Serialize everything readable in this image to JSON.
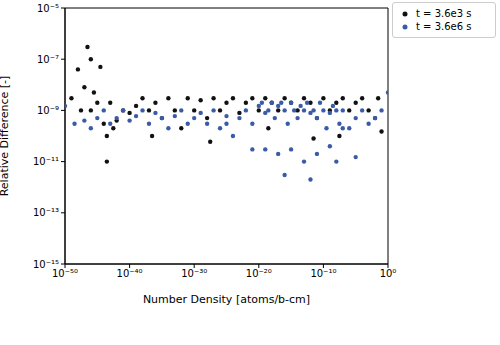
{
  "chart_data": {
    "type": "scatter",
    "xlabel": "Number Density [atoms/b-cm]",
    "ylabel": "Relative Difference [-]",
    "log": true,
    "legend": "upper right",
    "xlim": [
      1e-50,
      1
    ],
    "ylim": [
      1e-15,
      1e-05
    ],
    "xticks": [
      {
        "value": 1e-50,
        "label": "10⁻⁵⁰"
      },
      {
        "value": 1e-40,
        "label": "10⁻⁴⁰"
      },
      {
        "value": 1e-30,
        "label": "10⁻³⁰"
      },
      {
        "value": 1e-20,
        "label": "10⁻²⁰"
      },
      {
        "value": 1e-10,
        "label": "10⁻¹⁰"
      },
      {
        "value": 1,
        "label": "10⁰"
      }
    ],
    "yticks": [
      {
        "value": 1e-15,
        "label": "10⁻¹⁵"
      },
      {
        "value": 1e-13,
        "label": "10⁻¹³"
      },
      {
        "value": 1e-11,
        "label": "10⁻¹¹"
      },
      {
        "value": 1e-09,
        "label": "10⁻⁹"
      },
      {
        "value": 1e-07,
        "label": "10⁻⁷"
      },
      {
        "value": 1e-05,
        "label": "10⁻⁵"
      }
    ],
    "series": [
      {
        "name": "t = 3.6e3 s",
        "color": "#111111",
        "marker": "o",
        "x": [
          1e-49,
          1e-48,
          3e-48,
          1e-47,
          3e-47,
          1e-46,
          3e-46,
          1e-45,
          3e-45,
          1e-44,
          3e-44,
          1e-43,
          1e-42,
          1e-41,
          1e-40,
          1e-39,
          1e-38,
          1e-37,
          1e-36,
          1e-35,
          1e-34,
          1e-33,
          1e-32,
          1e-31,
          1e-30,
          1e-29,
          1e-28,
          1e-27,
          1e-26,
          1e-25,
          1e-24,
          1e-23,
          1e-22,
          1e-21,
          1e-20,
          1e-19,
          1e-18,
          1e-17,
          1e-16,
          1e-15,
          1e-14,
          1e-13,
          1e-12,
          1e-11,
          1e-10,
          1e-09,
          1e-08,
          1e-07,
          1e-06,
          1e-05,
          0.0001,
          0.001,
          0.01,
          0.03,
          0.1,
          3e-44,
          3e-37,
          3e-28,
          3e-19,
          3e-12,
          3e-08,
          1e-46,
          3e-43
        ],
        "values": [
          3e-09,
          4e-08,
          1e-09,
          8e-09,
          3e-07,
          1e-07,
          5e-09,
          2e-09,
          5e-08,
          3e-10,
          1e-11,
          2e-09,
          4e-10,
          1e-09,
          8e-10,
          1.5e-09,
          3e-09,
          1e-09,
          2e-09,
          5e-10,
          3e-09,
          1e-09,
          2e-10,
          3e-09,
          1e-09,
          2.5e-09,
          5e-10,
          3e-09,
          1e-09,
          2e-09,
          3e-09,
          8e-10,
          2e-09,
          3e-09,
          1e-09,
          3e-09,
          2e-09,
          1e-09,
          3e-09,
          2e-09,
          1e-09,
          3e-09,
          2e-09,
          5e-10,
          3e-09,
          1e-09,
          2e-09,
          3e-09,
          1e-09,
          2e-09,
          3e-09,
          1e-09,
          5e-10,
          3e-09,
          1.5e-10,
          1e-10,
          1e-10,
          6e-11,
          2e-10,
          8e-11,
          1e-10,
          1e-09,
          2e-10
        ]
      },
      {
        "name": "t = 3.6e6 s",
        "color": "#3a5ba8",
        "marker": "o",
        "x": [
          1e-50,
          3e-49,
          1e-47,
          1e-46,
          1e-45,
          1e-44,
          1e-43,
          1e-42,
          1e-41,
          1e-40,
          1e-39,
          1e-38,
          1e-37,
          1e-36,
          1e-35,
          1e-34,
          1e-33,
          1e-32,
          1e-31,
          1e-30,
          1e-29,
          1e-28,
          1e-27,
          1e-26,
          1e-25,
          1e-24,
          1e-23,
          1e-22,
          1e-21,
          1e-20,
          3e-20,
          1e-19,
          3e-19,
          1e-18,
          3e-18,
          1e-17,
          3e-17,
          1e-16,
          3e-16,
          1e-15,
          3e-15,
          1e-14,
          3e-14,
          1e-13,
          3e-13,
          1e-12,
          3e-12,
          1e-11,
          3e-11,
          1e-10,
          3e-10,
          1e-09,
          3e-09,
          1e-08,
          3e-08,
          1e-07,
          1e-06,
          1e-05,
          0.0001,
          0.001,
          0.01,
          0.1,
          1,
          1e-19,
          1e-17,
          1e-15,
          1e-13,
          1e-11,
          1e-09,
          1e-07,
          1e-05,
          1e-16,
          1e-12,
          1e-08,
          1e-25,
          1e-21
        ],
        "values": [
          1.5e-09,
          3e-10,
          4e-10,
          2e-10,
          5e-10,
          1e-09,
          3e-10,
          5e-10,
          1e-09,
          4e-10,
          6e-10,
          1e-09,
          3e-10,
          8e-10,
          5e-10,
          2e-10,
          6e-10,
          1e-09,
          3e-10,
          5e-10,
          8e-10,
          3e-10,
          1e-09,
          2e-10,
          6e-10,
          1e-10,
          5e-10,
          1e-09,
          3e-10,
          1.5e-09,
          2e-09,
          8e-10,
          1e-09,
          2e-09,
          5e-10,
          1.5e-09,
          2e-09,
          1e-09,
          3e-10,
          2e-09,
          1e-09,
          5e-10,
          1.5e-09,
          1e-09,
          2e-09,
          8e-10,
          1e-09,
          5e-10,
          2e-09,
          1e-09,
          2e-10,
          8e-10,
          1.5e-09,
          1e-09,
          3e-10,
          1e-09,
          2e-10,
          5e-10,
          1e-09,
          3e-10,
          5e-10,
          1e-09,
          5e-09,
          3e-11,
          2e-11,
          3e-11,
          1e-11,
          2e-11,
          4e-11,
          2e-10,
          1.5e-11,
          3e-12,
          2e-12,
          1e-11,
          3e-10,
          3e-11
        ]
      }
    ]
  }
}
